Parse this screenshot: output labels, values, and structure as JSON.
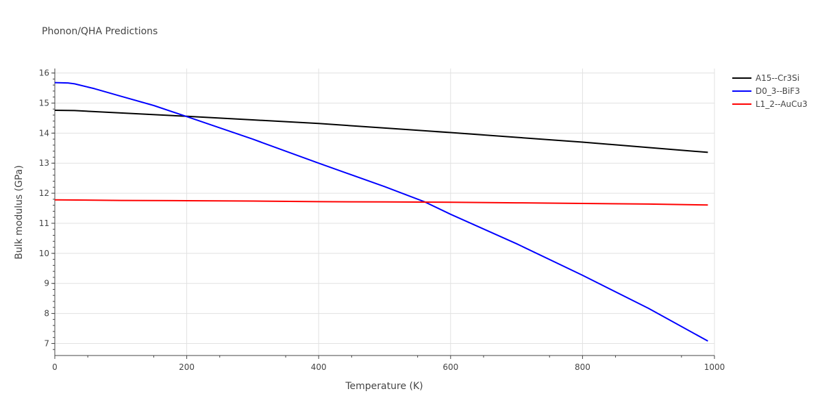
{
  "chart_data": {
    "type": "line",
    "title": "Phonon/QHA Predictions",
    "xlabel": "Temperature (K)",
    "ylabel": "Bulk modulus (GPa)",
    "xlim": [
      0,
      1000
    ],
    "ylim": [
      6.6,
      16.15
    ],
    "x_ticks": [
      0,
      200,
      400,
      600,
      800,
      1000
    ],
    "y_ticks": [
      7,
      8,
      9,
      10,
      11,
      12,
      13,
      14,
      15,
      16
    ],
    "grid": true,
    "legend_position": "top-right",
    "series": [
      {
        "name": "A15--Cr3Si",
        "color": "#000000",
        "x": [
          0,
          30,
          100,
          200,
          300,
          400,
          500,
          600,
          700,
          800,
          900,
          990
        ],
        "y": [
          14.76,
          14.75,
          14.67,
          14.56,
          14.44,
          14.32,
          14.17,
          14.02,
          13.86,
          13.7,
          13.52,
          13.36
        ]
      },
      {
        "name": "D0_3--BiF3",
        "color": "#0000ff",
        "x": [
          0,
          20,
          30,
          60,
          100,
          150,
          200,
          300,
          400,
          500,
          560,
          600,
          700,
          800,
          900,
          990
        ],
        "y": [
          15.68,
          15.67,
          15.64,
          15.48,
          15.23,
          14.92,
          14.55,
          13.8,
          13.0,
          12.22,
          11.72,
          11.3,
          10.32,
          9.27,
          8.17,
          7.08
        ]
      },
      {
        "name": "L1_2--AuCu3",
        "color": "#ff0000",
        "x": [
          0,
          100,
          200,
          300,
          400,
          500,
          600,
          700,
          800,
          900,
          990
        ],
        "y": [
          11.78,
          11.76,
          11.75,
          11.74,
          11.72,
          11.71,
          11.7,
          11.68,
          11.66,
          11.64,
          11.61
        ]
      }
    ]
  }
}
